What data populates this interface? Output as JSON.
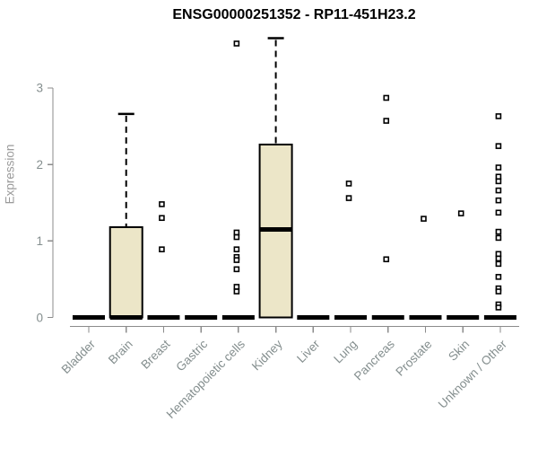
{
  "chart_data": {
    "type": "boxplot",
    "title": "ENSG00000251352 - RP11-451H23.2",
    "ylabel": "Expression",
    "xlabel": "",
    "yticks": [
      0,
      1,
      2,
      3
    ],
    "ylim": [
      0,
      3.74
    ],
    "grid": false,
    "legend": "none",
    "categories": [
      "Bladder",
      "Brain",
      "Breast",
      "Gastric",
      "Hematopoietic cells",
      "Kidney",
      "Liver",
      "Lung",
      "Pancreas",
      "Prostate",
      "Skin",
      "Unknown / Other"
    ],
    "boxes": [
      {
        "category": "Bladder",
        "q1": 0,
        "median": 0,
        "q3": 0,
        "whisker_low": 0,
        "whisker_high": 0,
        "outliers": []
      },
      {
        "category": "Brain",
        "q1": 0,
        "median": 0,
        "q3": 1.18,
        "whisker_low": 0,
        "whisker_high": 2.66,
        "outliers": []
      },
      {
        "category": "Breast",
        "q1": 0,
        "median": 0,
        "q3": 0,
        "whisker_low": 0,
        "whisker_high": 0,
        "outliers": [
          1.48,
          1.3,
          0.89
        ]
      },
      {
        "category": "Gastric",
        "q1": 0,
        "median": 0,
        "q3": 0,
        "whisker_low": 0,
        "whisker_high": 0,
        "outliers": []
      },
      {
        "category": "Hematopoietic cells",
        "q1": 0,
        "median": 0,
        "q3": 0,
        "whisker_low": 0,
        "whisker_high": 0,
        "outliers": [
          3.58,
          1.11,
          1.05,
          0.89,
          0.79,
          0.75,
          0.63,
          0.4,
          0.34
        ]
      },
      {
        "category": "Kidney",
        "q1": 0,
        "median": 1.15,
        "q3": 2.26,
        "whisker_low": 0,
        "whisker_high": 3.65,
        "outliers": []
      },
      {
        "category": "Liver",
        "q1": 0,
        "median": 0,
        "q3": 0,
        "whisker_low": 0,
        "whisker_high": 0,
        "outliers": []
      },
      {
        "category": "Lung",
        "q1": 0,
        "median": 0,
        "q3": 0,
        "whisker_low": 0,
        "whisker_high": 0,
        "outliers": [
          1.75,
          1.56
        ]
      },
      {
        "category": "Pancreas",
        "q1": 0,
        "median": 0,
        "q3": 0,
        "whisker_low": 0,
        "whisker_high": 0,
        "outliers": [
          2.87,
          2.57,
          0.76
        ]
      },
      {
        "category": "Prostate",
        "q1": 0,
        "median": 0,
        "q3": 0,
        "whisker_low": 0,
        "whisker_high": 0,
        "outliers": [
          1.29
        ]
      },
      {
        "category": "Skin",
        "q1": 0,
        "median": 0,
        "q3": 0,
        "whisker_low": 0,
        "whisker_high": 0,
        "outliers": [
          1.36
        ]
      },
      {
        "category": "Unknown / Other",
        "q1": 0,
        "median": 0,
        "q3": 0,
        "whisker_low": 0,
        "whisker_high": 0,
        "outliers": [
          2.63,
          2.24,
          1.96,
          1.84,
          1.78,
          1.66,
          1.53,
          1.37,
          1.12,
          1.04,
          0.83,
          0.77,
          0.7,
          0.53,
          0.38,
          0.34,
          0.17,
          0.13
        ]
      }
    ],
    "colors": {
      "box_fill": "#ece6c8",
      "box_stroke": "#000000",
      "median": "#000000",
      "whisker": "#000000",
      "outlier_stroke": "#000000",
      "axis": "#8b8b8b",
      "tick_labels": "#848e8e",
      "axis_label": "#9a9a9a",
      "title": "#000000",
      "background": "#ffffff"
    }
  }
}
